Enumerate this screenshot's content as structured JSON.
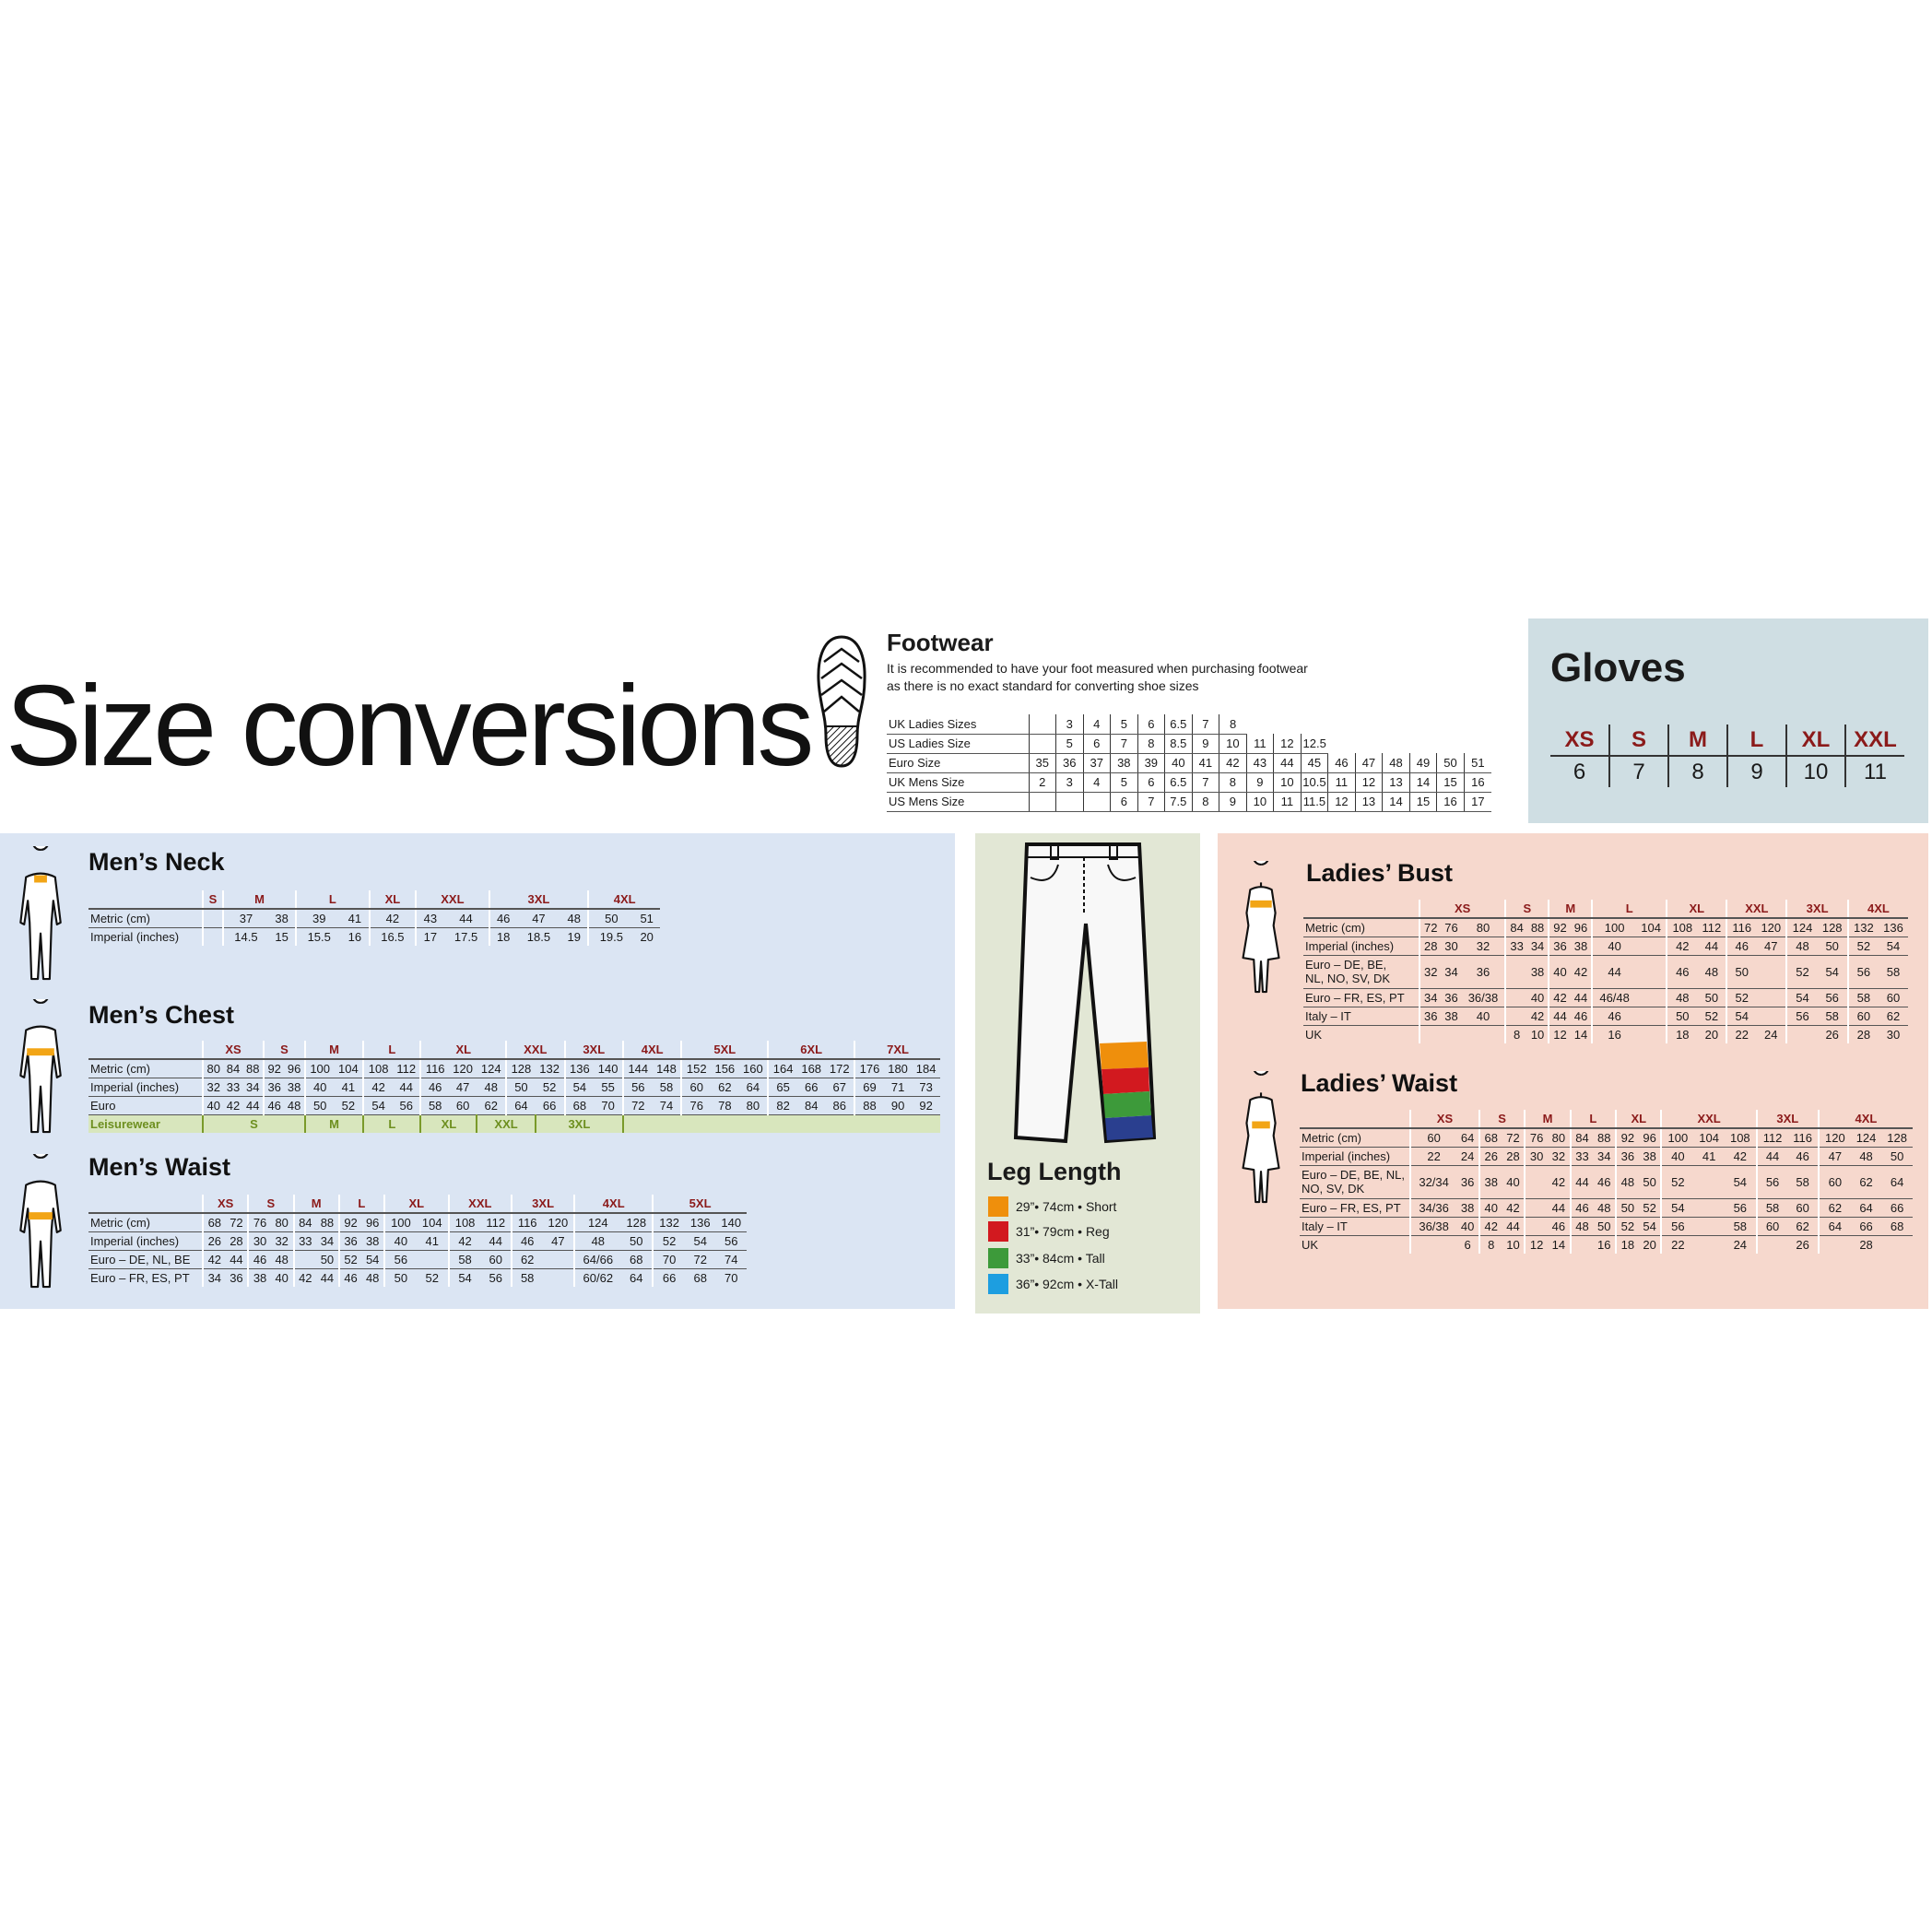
{
  "title": "Size conversions",
  "colors": {
    "header_red": "#8b1a1a",
    "mens_panel": "#dbe5f3",
    "leg_panel": "#e2e7d5",
    "ladies_panel": "#f6d8cd",
    "gloves_panel": "#cfdee3",
    "band": "#f2a516"
  },
  "footwear": {
    "title": "Footwear",
    "note_line1": "It is recommended to have your foot measured when purchasing footwear",
    "note_line2": "as there is no exact standard for converting shoe sizes",
    "icon": "shoe-sole-icon",
    "rows": [
      {
        "label": "UK Ladies Sizes",
        "values": [
          "",
          "3",
          "4",
          "5",
          "6",
          "6.5",
          "7",
          "8"
        ]
      },
      {
        "label": "US Ladies Size",
        "values": [
          "",
          "5",
          "6",
          "7",
          "8",
          "8.5",
          "9",
          "10",
          "11",
          "12",
          "12.5"
        ]
      },
      {
        "label": "Euro Size",
        "values": [
          "35",
          "36",
          "37",
          "38",
          "39",
          "40",
          "41",
          "42",
          "43",
          "44",
          "45",
          "46",
          "47",
          "48",
          "49",
          "50",
          "51"
        ]
      },
      {
        "label": "UK Mens Size",
        "values": [
          "2",
          "3",
          "4",
          "5",
          "6",
          "6.5",
          "7",
          "8",
          "9",
          "10",
          "10.5",
          "11",
          "12",
          "13",
          "14",
          "15",
          "16"
        ]
      },
      {
        "label": "US Mens Size",
        "values": [
          "",
          "",
          "",
          "6",
          "7",
          "7.5",
          "8",
          "9",
          "10",
          "11",
          "11.5",
          "12",
          "13",
          "14",
          "15",
          "16",
          "17"
        ]
      }
    ]
  },
  "gloves": {
    "title": "Gloves",
    "sizes": [
      "XS",
      "S",
      "M",
      "L",
      "XL",
      "XXL"
    ],
    "values": [
      "6",
      "7",
      "8",
      "9",
      "10",
      "11"
    ]
  },
  "mens_neck": {
    "title": "Men’s Neck",
    "groups": [
      {
        "label": "S",
        "span": 1
      },
      {
        "label": "M",
        "span": 2
      },
      {
        "label": "L",
        "span": 2
      },
      {
        "label": "XL",
        "span": 1
      },
      {
        "label": "XXL",
        "span": 2
      },
      {
        "label": "3XL",
        "span": 3
      },
      {
        "label": "4XL",
        "span": 2
      }
    ],
    "rows": [
      {
        "label": "Metric (cm)",
        "values": [
          "",
          "37",
          "38",
          "39",
          "41",
          "42",
          "43",
          "44",
          "46",
          "47",
          "48",
          "50",
          "51"
        ]
      },
      {
        "label": "Imperial (inches)",
        "values": [
          "",
          "14.5",
          "15",
          "15.5",
          "16",
          "16.5",
          "17",
          "17.5",
          "18",
          "18.5",
          "19",
          "19.5",
          "20"
        ]
      }
    ]
  },
  "mens_chest": {
    "title": "Men’s Chest",
    "groups": [
      {
        "label": "XS",
        "span": 3
      },
      {
        "label": "S",
        "span": 2
      },
      {
        "label": "M",
        "span": 2
      },
      {
        "label": "L",
        "span": 2
      },
      {
        "label": "XL",
        "span": 3
      },
      {
        "label": "XXL",
        "span": 2
      },
      {
        "label": "3XL",
        "span": 2
      },
      {
        "label": "4XL",
        "span": 2
      },
      {
        "label": "5XL",
        "span": 3
      },
      {
        "label": "6XL",
        "span": 3
      },
      {
        "label": "7XL",
        "span": 3
      }
    ],
    "rows": [
      {
        "label": "Metric (cm)",
        "values": [
          "80",
          "84",
          "88",
          "92",
          "96",
          "100",
          "104",
          "108",
          "112",
          "116",
          "120",
          "124",
          "128",
          "132",
          "136",
          "140",
          "144",
          "148",
          "152",
          "156",
          "160",
          "164",
          "168",
          "172",
          "176",
          "180",
          "184"
        ]
      },
      {
        "label": "Imperial (inches)",
        "values": [
          "32",
          "33",
          "34",
          "36",
          "38",
          "40",
          "41",
          "42",
          "44",
          "46",
          "47",
          "48",
          "50",
          "52",
          "54",
          "55",
          "56",
          "58",
          "60",
          "62",
          "64",
          "65",
          "66",
          "67",
          "69",
          "71",
          "73"
        ]
      },
      {
        "label": "Euro",
        "values": [
          "40",
          "42",
          "44",
          "46",
          "48",
          "50",
          "52",
          "54",
          "56",
          "58",
          "60",
          "62",
          "64",
          "66",
          "68",
          "70",
          "72",
          "74",
          "76",
          "78",
          "80",
          "82",
          "84",
          "86",
          "88",
          "90",
          "92"
        ]
      }
    ],
    "leisurewear": {
      "label": "Leisurewear",
      "groups": [
        {
          "label": "S",
          "span": 5
        },
        {
          "label": "M",
          "span": 2
        },
        {
          "label": "L",
          "span": 2
        },
        {
          "label": "XL",
          "span": 2
        },
        {
          "label": "XXL",
          "span": 2
        },
        {
          "label": "3XL",
          "span": 3
        },
        {
          "label": "",
          "span": 11
        }
      ]
    }
  },
  "mens_waist": {
    "title": "Men’s Waist",
    "groups": [
      {
        "label": "XS",
        "span": 2
      },
      {
        "label": "S",
        "span": 2
      },
      {
        "label": "M",
        "span": 2
      },
      {
        "label": "L",
        "span": 2
      },
      {
        "label": "XL",
        "span": 2
      },
      {
        "label": "XXL",
        "span": 2
      },
      {
        "label": "3XL",
        "span": 2
      },
      {
        "label": "4XL",
        "span": 2
      },
      {
        "label": "5XL",
        "span": 3
      }
    ],
    "rows": [
      {
        "label": "Metric (cm)",
        "values": [
          "68",
          "72",
          "76",
          "80",
          "84",
          "88",
          "92",
          "96",
          "100",
          "104",
          "108",
          "112",
          "116",
          "120",
          "124",
          "128",
          "132",
          "136",
          "140"
        ]
      },
      {
        "label": "Imperial (inches)",
        "values": [
          "26",
          "28",
          "30",
          "32",
          "33",
          "34",
          "36",
          "38",
          "40",
          "41",
          "42",
          "44",
          "46",
          "47",
          "48",
          "50",
          "52",
          "54",
          "56"
        ]
      },
      {
        "label": "Euro – DE, NL, BE",
        "values": [
          "42",
          "44",
          "46",
          "48",
          "",
          "50",
          "52",
          "54",
          "56",
          "",
          "58",
          "60",
          "62",
          "",
          "64/66",
          "68",
          "70",
          "72",
          "74"
        ]
      },
      {
        "label": "Euro – FR, ES, PT",
        "values": [
          "34",
          "36",
          "38",
          "40",
          "42",
          "44",
          "46",
          "48",
          "50",
          "52",
          "54",
          "56",
          "58",
          "",
          "60/62",
          "64",
          "66",
          "68",
          "70"
        ]
      }
    ]
  },
  "leg_length": {
    "title": "Leg Length",
    "items": [
      {
        "label": "29”• 74cm • Short",
        "color": "#ef8f0c"
      },
      {
        "label": "31”• 79cm • Reg",
        "color": "#d2191f"
      },
      {
        "label": "33”• 84cm • Tall",
        "color": "#3d9a3a"
      },
      {
        "label": "36”• 92cm • X-Tall",
        "color": "#1d9ee0"
      }
    ],
    "pants_stripe_colors": [
      "#ef8f0c",
      "#d2191f",
      "#3d9a3a",
      "#2a3f8f"
    ]
  },
  "ladies_bust": {
    "title": "Ladies’ Bust",
    "groups": [
      {
        "label": "XS",
        "span": 3
      },
      {
        "label": "S",
        "span": 2
      },
      {
        "label": "M",
        "span": 2
      },
      {
        "label": "L",
        "span": 2
      },
      {
        "label": "XL",
        "span": 2
      },
      {
        "label": "XXL",
        "span": 2
      },
      {
        "label": "3XL",
        "span": 2
      },
      {
        "label": "4XL",
        "span": 2
      }
    ],
    "rows": [
      {
        "label": "Metric (cm)",
        "values": [
          "72",
          "76",
          "80",
          "84",
          "88",
          "92",
          "96",
          "100",
          "104",
          "108",
          "112",
          "116",
          "120",
          "124",
          "128",
          "132",
          "136"
        ]
      },
      {
        "label": "Imperial (inches)",
        "values": [
          "28",
          "30",
          "32",
          "33",
          "34",
          "36",
          "38",
          "40",
          "",
          "42",
          "44",
          "46",
          "47",
          "48",
          "50",
          "52",
          "54"
        ]
      },
      {
        "label": "Euro – DE, BE,|NL, NO, SV, DK",
        "values": [
          "32",
          "34",
          "36",
          "",
          "38",
          "40",
          "42",
          "44",
          "",
          "46",
          "48",
          "50",
          "",
          "52",
          "54",
          "56",
          "58"
        ]
      },
      {
        "label": "Euro – FR, ES, PT",
        "values": [
          "34",
          "36",
          "36/38",
          "",
          "40",
          "42",
          "44",
          "46/48",
          "",
          "48",
          "50",
          "52",
          "",
          "54",
          "56",
          "58",
          "60"
        ]
      },
      {
        "label": "Italy – IT",
        "values": [
          "36",
          "38",
          "40",
          "",
          "42",
          "44",
          "46",
          "46",
          "",
          "50",
          "52",
          "54",
          "",
          "56",
          "58",
          "60",
          "62"
        ]
      },
      {
        "label": "UK",
        "values": [
          "",
          "",
          "",
          "8",
          "10",
          "12",
          "14",
          "16",
          "",
          "18",
          "20",
          "22",
          "24",
          "",
          "26",
          "28",
          "30"
        ]
      }
    ]
  },
  "ladies_waist": {
    "title": "Ladies’ Waist",
    "groups": [
      {
        "label": "XS",
        "span": 2
      },
      {
        "label": "S",
        "span": 2
      },
      {
        "label": "M",
        "span": 2
      },
      {
        "label": "L",
        "span": 2
      },
      {
        "label": "XL",
        "span": 2
      },
      {
        "label": "XXL",
        "span": 3
      },
      {
        "label": "3XL",
        "span": 2
      },
      {
        "label": "4XL",
        "span": 3
      }
    ],
    "rows": [
      {
        "label": "Metric (cm)",
        "values": [
          "60",
          "64",
          "68",
          "72",
          "76",
          "80",
          "84",
          "88",
          "92",
          "96",
          "100",
          "104",
          "108",
          "112",
          "116",
          "120",
          "124",
          "128"
        ]
      },
      {
        "label": "Imperial (inches)",
        "values": [
          "22",
          "24",
          "26",
          "28",
          "30",
          "32",
          "33",
          "34",
          "36",
          "38",
          "40",
          "41",
          "42",
          "44",
          "46",
          "47",
          "48",
          "50"
        ]
      },
      {
        "label": "Euro – DE, BE, NL,|NO, SV, DK",
        "values": [
          "32/34",
          "36",
          "38",
          "40",
          "",
          "42",
          "44",
          "46",
          "48",
          "50",
          "52",
          "",
          "54",
          "56",
          "58",
          "60",
          "62",
          "64"
        ]
      },
      {
        "label": "Euro – FR, ES, PT",
        "values": [
          "34/36",
          "38",
          "40",
          "42",
          "",
          "44",
          "46",
          "48",
          "50",
          "52",
          "54",
          "",
          "56",
          "58",
          "60",
          "62",
          "64",
          "66"
        ]
      },
      {
        "label": "Italy – IT",
        "values": [
          "36/38",
          "40",
          "42",
          "44",
          "",
          "46",
          "48",
          "50",
          "52",
          "54",
          "56",
          "",
          "58",
          "60",
          "62",
          "64",
          "66",
          "68"
        ]
      },
      {
        "label": "UK",
        "values": [
          "",
          "6",
          "8",
          "10",
          "12",
          "14",
          "",
          "16",
          "18",
          "20",
          "22",
          "",
          "24",
          "",
          "26",
          "",
          "28",
          ""
        ]
      }
    ]
  }
}
